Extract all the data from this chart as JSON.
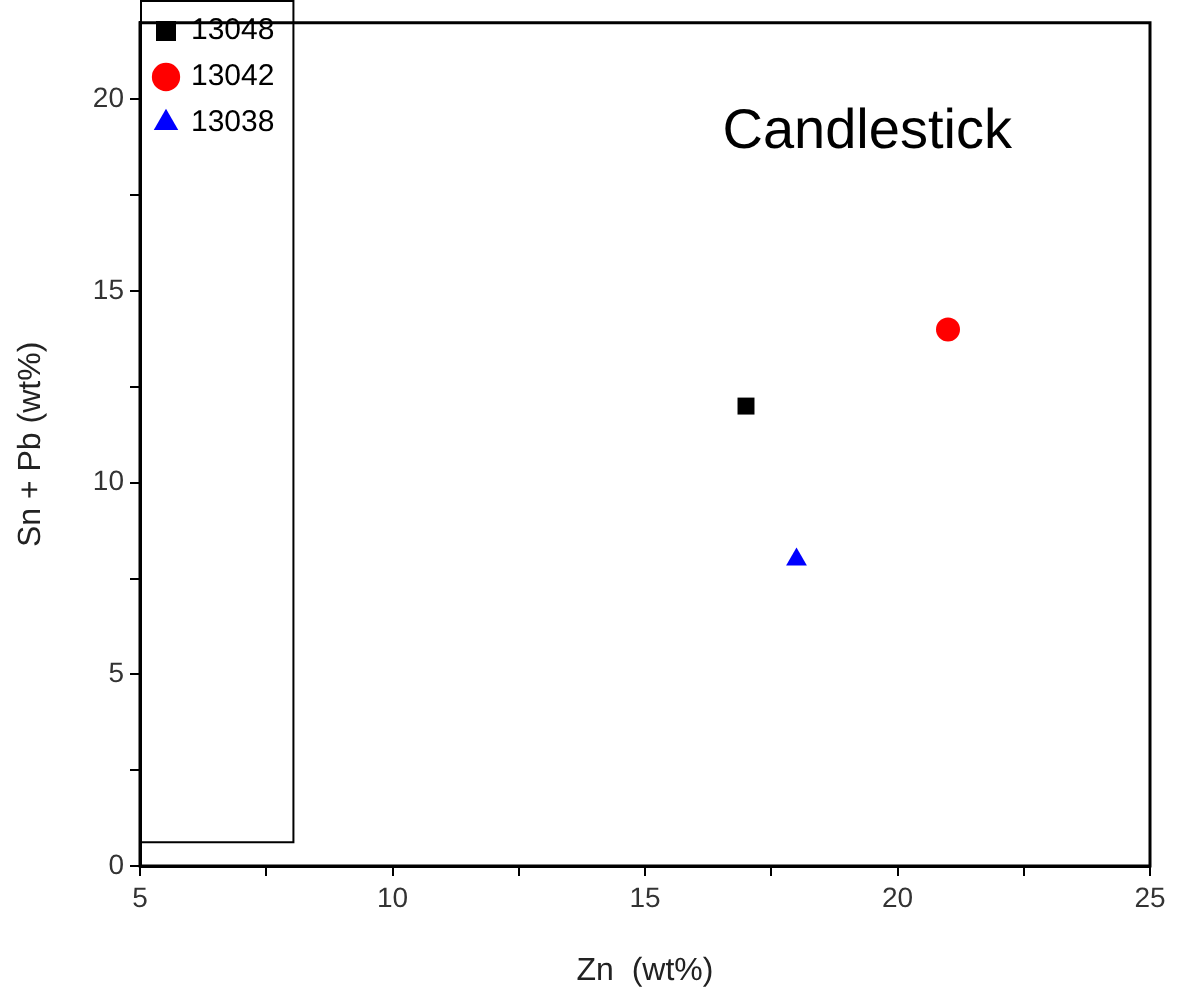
{
  "chart_data": {
    "type": "scatter",
    "annotations": [
      "Candlestick"
    ],
    "xlabel": "Zn  (wt%)",
    "ylabel": "Sn + Pb (wt%)",
    "xlim": [
      5,
      25
    ],
    "ylim": [
      0,
      22
    ],
    "xticks": [
      5,
      {
        "value": 7.5,
        "label": null
      },
      10,
      {
        "value": 12.5,
        "label": null
      },
      15,
      {
        "value": 17.5,
        "label": null
      },
      20,
      {
        "value": 22.5,
        "label": null
      },
      25
    ],
    "yticks": [
      0,
      {
        "value": 2.5,
        "label": null
      },
      5,
      {
        "value": 7.5,
        "label": null
      },
      10,
      {
        "value": 12.5,
        "label": null
      },
      15,
      {
        "value": 17.5,
        "label": null
      },
      20
    ],
    "grid": false,
    "legend": "top left",
    "series": [
      {
        "name": "13048",
        "color": "#000000",
        "marker": "square",
        "x": [
          17
        ],
        "values": [
          12
        ]
      },
      {
        "name": "13042",
        "color": "#ff0000",
        "marker": "circle",
        "x": [
          21
        ],
        "values": [
          14
        ]
      },
      {
        "name": "13038",
        "color": "#0000ff",
        "marker": "triangle",
        "x": [
          18
        ],
        "values": [
          8
        ]
      }
    ]
  }
}
